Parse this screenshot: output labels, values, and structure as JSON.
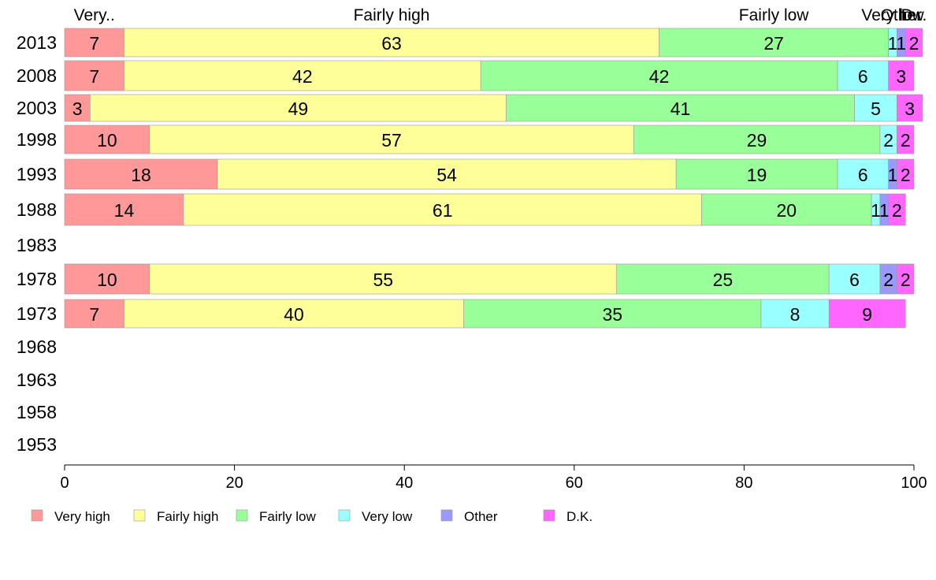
{
  "chart_data": {
    "type": "bar",
    "orientation": "horizontal",
    "stacked": true,
    "categories": [
      "2013",
      "2008",
      "2003",
      "1998",
      "1993",
      "1988",
      "1983",
      "1978",
      "1973",
      "1968",
      "1963",
      "1958",
      "1953"
    ],
    "series": [
      {
        "name": "Very high",
        "color": "#ff9999",
        "values": [
          7,
          7,
          3,
          10,
          18,
          14,
          null,
          10,
          7,
          null,
          null,
          null,
          null
        ]
      },
      {
        "name": "Fairly high",
        "color": "#ffff99",
        "values": [
          63,
          42,
          49,
          57,
          54,
          61,
          null,
          55,
          40,
          null,
          null,
          null,
          null
        ]
      },
      {
        "name": "Fairly low",
        "color": "#99ff99",
        "values": [
          27,
          42,
          41,
          29,
          19,
          20,
          null,
          25,
          35,
          null,
          null,
          null,
          null
        ]
      },
      {
        "name": "Very low",
        "color": "#99ffff",
        "values": [
          1,
          6,
          5,
          2,
          6,
          1,
          null,
          6,
          8,
          null,
          null,
          null,
          null
        ]
      },
      {
        "name": "Other",
        "color": "#9999ff",
        "values": [
          1,
          0,
          0,
          0,
          1,
          1,
          null,
          2,
          0,
          null,
          null,
          null,
          null
        ]
      },
      {
        "name": "D.K.",
        "color": "#ff66ff",
        "values": [
          2,
          3,
          3,
          2,
          2,
          2,
          null,
          2,
          9,
          null,
          null,
          null,
          null
        ]
      }
    ],
    "top_labels": [
      "Very..",
      "Fairly high",
      "Fairly low",
      "Very low",
      "Other",
      "D..."
    ],
    "xlim": [
      0,
      100
    ],
    "xticks": [
      0,
      20,
      40,
      60,
      80,
      100
    ],
    "legend_position": "bottom",
    "grid": false
  }
}
